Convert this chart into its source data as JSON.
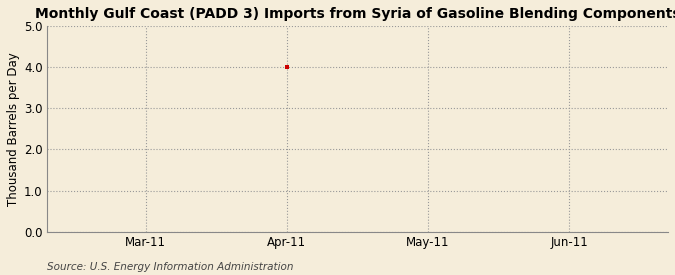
{
  "title": "Monthly Gulf Coast (PADD 3) Imports from Syria of Gasoline Blending Components",
  "ylabel": "Thousand Barrels per Day",
  "source": "Source: U.S. Energy Information Administration",
  "background_color": "#f5edda",
  "plot_bg_color": "#f5edda",
  "ylim": [
    0.0,
    5.0
  ],
  "yticks": [
    0.0,
    1.0,
    2.0,
    3.0,
    4.0,
    5.0
  ],
  "xtick_labels": [
    "Mar-11",
    "Apr-11",
    "May-11",
    "Jun-11"
  ],
  "xtick_positions": [
    1,
    2,
    3,
    4
  ],
  "xlim": [
    0.3,
    4.7
  ],
  "data_x": [
    2
  ],
  "data_y": [
    4.0
  ],
  "data_color": "#cc0000",
  "grid_color": "#999999",
  "title_fontsize": 10,
  "label_fontsize": 8.5,
  "tick_fontsize": 8.5,
  "source_fontsize": 7.5
}
